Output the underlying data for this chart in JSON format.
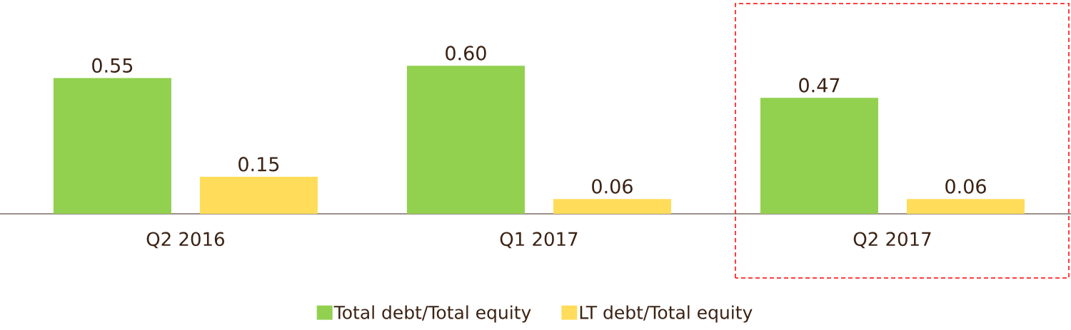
{
  "chart_data": {
    "type": "bar",
    "categories": [
      "Q2 2016",
      "Q1 2017",
      "Q2 2017"
    ],
    "series": [
      {
        "name": "Total debt/Total equity",
        "color": "#92d050",
        "values": [
          0.55,
          0.6,
          0.47
        ],
        "value_labels": [
          "0.55",
          "0.60",
          "0.47"
        ]
      },
      {
        "name": "LT debt/Total equity",
        "color": "#ffdc5a",
        "values": [
          0.15,
          0.06,
          0.06
        ],
        "value_labels": [
          "0.15",
          "0.06",
          "0.06"
        ]
      }
    ],
    "legend": "bottom"
  }
}
